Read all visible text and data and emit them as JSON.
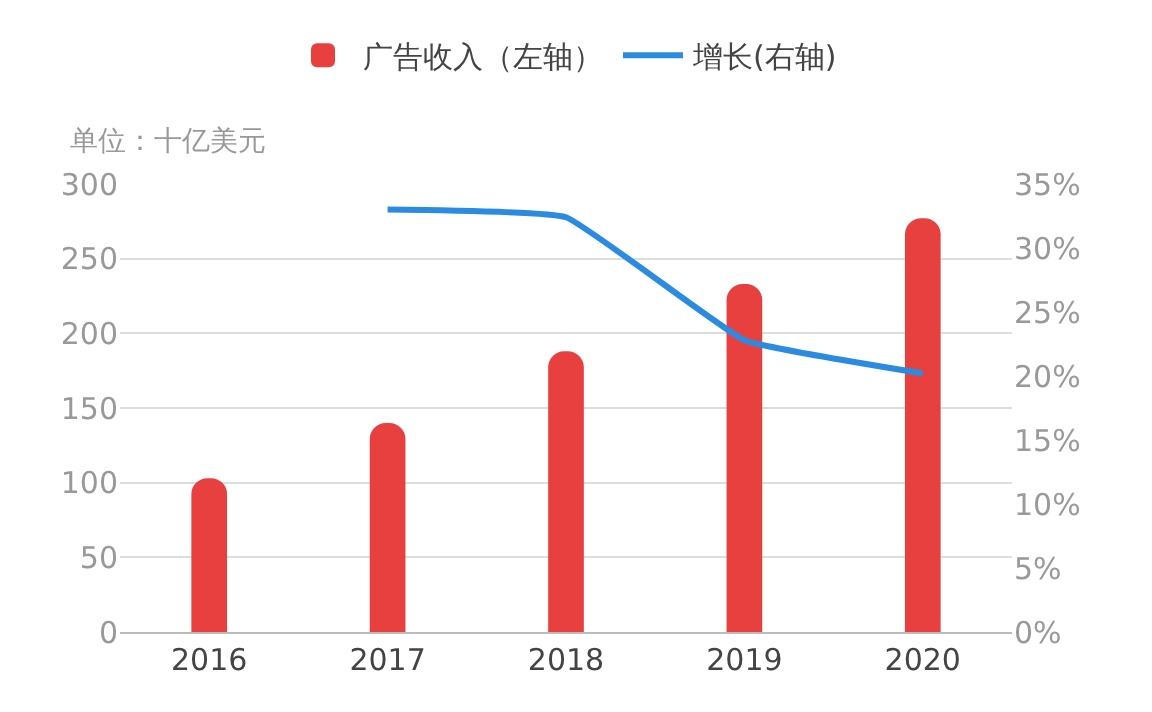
{
  "chart_data": {
    "type": "bar",
    "ylabel": "单位：十亿美元",
    "categories": [
      "2016",
      "2017",
      "2018",
      "2019",
      "2020"
    ],
    "series": [
      {
        "name": "广告收入（左轴）",
        "color": "#e8403f",
        "values": [
          103,
          140,
          188,
          233,
          277
        ]
      },
      {
        "name": "增长(右轴)",
        "type": "line",
        "axis": "y2",
        "color": "#2a8be0",
        "values": [
          null,
          33.0,
          32.4,
          22.8,
          20.2
        ]
      }
    ],
    "ylim": [
      0,
      300
    ],
    "yticks": [
      0,
      50,
      100,
      150,
      200,
      250,
      300
    ],
    "y2lim": [
      0,
      35
    ],
    "y2ticks": [
      {
        "value": 0,
        "label": "0%"
      },
      {
        "value": 5,
        "label": "5%"
      },
      {
        "value": 10,
        "label": "10%"
      },
      {
        "value": 15,
        "label": "15%"
      },
      {
        "value": 20,
        "label": "20%"
      },
      {
        "value": 25,
        "label": "25%"
      },
      {
        "value": 30,
        "label": "30%"
      },
      {
        "value": 35,
        "label": "35%"
      }
    ],
    "grid": "y",
    "legend": "top",
    "marker": "none",
    "line_style": "solid"
  }
}
